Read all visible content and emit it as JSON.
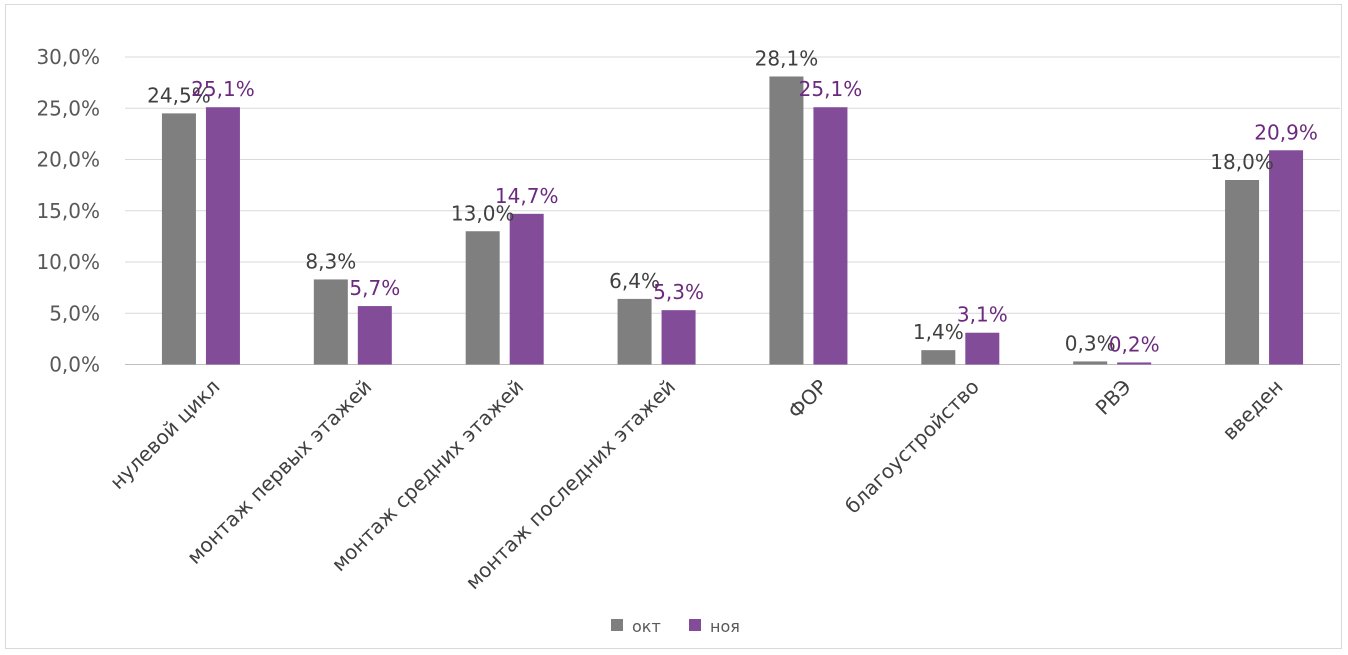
{
  "chart_data": {
    "type": "bar",
    "categories": [
      "нулевой цикл",
      "монтаж первых этажей",
      "монтаж средних этажей",
      "монтаж последних этажей",
      "ФОР",
      "благоустройство",
      "РВЭ",
      "введен"
    ],
    "series": [
      {
        "name": "окт",
        "color": "#7f7f7f",
        "values": [
          24.5,
          8.3,
          13.0,
          6.4,
          28.1,
          1.4,
          0.3,
          18.0
        ],
        "labels": [
          "24,5%",
          "8,3%",
          "13,0%",
          "6,4%",
          "28,1%",
          "1,4%",
          "0,3%",
          "18,0%"
        ]
      },
      {
        "name": "ноя",
        "color": "#834c99",
        "label_color": "#6b2a7e",
        "values": [
          25.1,
          5.7,
          14.7,
          5.3,
          25.1,
          3.1,
          0.2,
          20.9
        ],
        "labels": [
          "25,1%",
          "5,7%",
          "14,7%",
          "5,3%",
          "25,1%",
          "3,1%",
          "0,2%",
          "20,9%"
        ]
      }
    ],
    "y_ticks": [
      "0,0%",
      "5,0%",
      "10,0%",
      "15,0%",
      "20,0%",
      "25,0%",
      "30,0%"
    ],
    "ylim": [
      0,
      30
    ],
    "grid": true,
    "legend_position": "bottom"
  }
}
